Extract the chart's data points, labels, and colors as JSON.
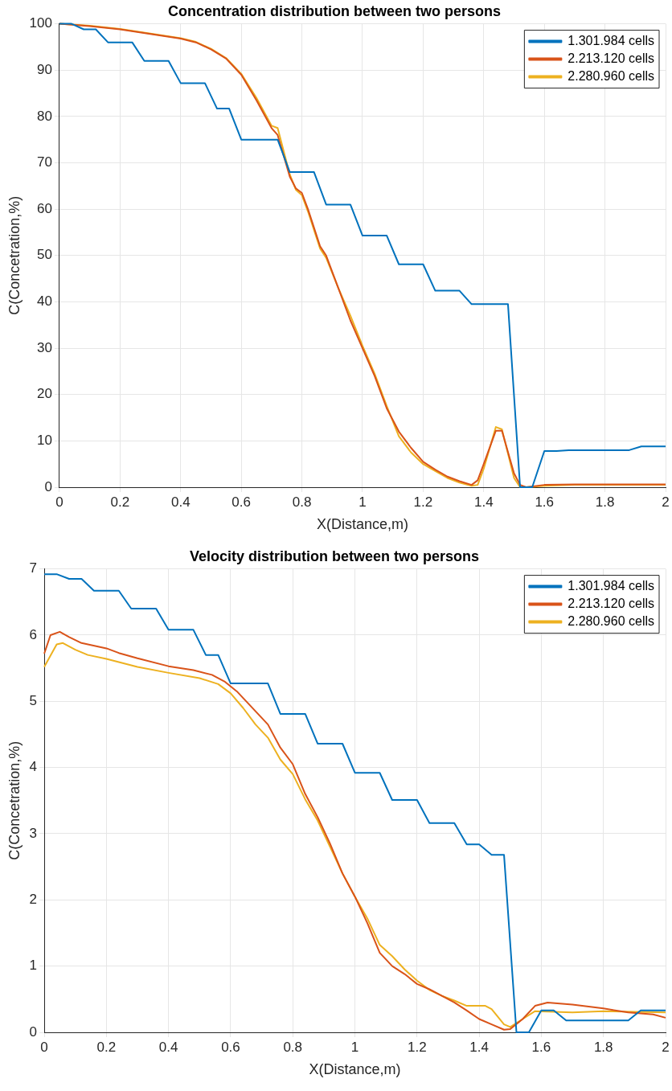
{
  "chart_data": [
    {
      "type": "line",
      "title": "Concentration distribution between two persons",
      "xlabel": "X(Distance,m)",
      "ylabel": "C(Concetration,%)",
      "xlim": [
        0,
        2
      ],
      "xticks": [
        0,
        0.2,
        0.4,
        0.6,
        0.8,
        1,
        1.2,
        1.4,
        1.6,
        1.8,
        2
      ],
      "ylim": [
        0,
        100
      ],
      "yticks": [
        0,
        10,
        20,
        30,
        40,
        50,
        60,
        70,
        80,
        90,
        100
      ],
      "grid": true,
      "legend": "top right",
      "marker": "none",
      "line_style": "solid",
      "series": [
        {
          "name": "1.301.984 cells",
          "color": "#0072bd",
          "x": [
            0,
            0.04,
            0.08,
            0.12,
            0.16,
            0.24,
            0.28,
            0.36,
            0.4,
            0.48,
            0.52,
            0.56,
            0.6,
            0.72,
            0.76,
            0.84,
            0.88,
            0.96,
            1.0,
            1.08,
            1.12,
            1.2,
            1.24,
            1.32,
            1.36,
            1.48,
            1.52,
            1.56,
            1.6,
            1.64,
            1.68,
            1.88,
            1.92,
            2
          ],
          "values": [
            100,
            100,
            98.8,
            98.8,
            96,
            96,
            92,
            92,
            87.2,
            87.2,
            81.7,
            81.7,
            75,
            75,
            68,
            68,
            61,
            61,
            54.3,
            54.3,
            48.1,
            48.1,
            42.4,
            42.4,
            39.5,
            39.5,
            0,
            0,
            7.8,
            7.8,
            8,
            8,
            8.8,
            8.8
          ]
        },
        {
          "name": "2.213.120 cells",
          "color": "#d95319",
          "x": [
            0,
            0.1,
            0.2,
            0.3,
            0.4,
            0.45,
            0.5,
            0.55,
            0.6,
            0.65,
            0.7,
            0.72,
            0.76,
            0.78,
            0.8,
            0.82,
            0.86,
            0.88,
            0.92,
            0.96,
            1.0,
            1.04,
            1.08,
            1.12,
            1.16,
            1.2,
            1.24,
            1.28,
            1.32,
            1.36,
            1.38,
            1.4,
            1.44,
            1.46,
            1.5,
            1.52,
            1.54,
            1.6,
            1.7,
            2
          ],
          "values": [
            100,
            99.5,
            98.8,
            97.8,
            96.8,
            96,
            94.5,
            92.5,
            89,
            83.5,
            77.5,
            76,
            67,
            64.5,
            63.5,
            60,
            52,
            50,
            43,
            36,
            30,
            24,
            17,
            12,
            8.5,
            5.5,
            3.8,
            2.3,
            1.3,
            0.5,
            1.5,
            5,
            12.2,
            12.2,
            3,
            0.5,
            0,
            0.5,
            0.6,
            0.6
          ]
        },
        {
          "name": "2.280.960 cells",
          "color": "#edb120",
          "x": [
            0,
            0.1,
            0.2,
            0.3,
            0.4,
            0.45,
            0.5,
            0.55,
            0.6,
            0.65,
            0.7,
            0.72,
            0.76,
            0.78,
            0.8,
            0.82,
            0.86,
            0.88,
            0.92,
            0.96,
            1.0,
            1.04,
            1.08,
            1.12,
            1.16,
            1.2,
            1.24,
            1.28,
            1.32,
            1.36,
            1.38,
            1.4,
            1.44,
            1.46,
            1.5,
            1.52,
            1.54,
            1.6,
            1.7,
            2
          ],
          "values": [
            100,
            99.6,
            98.9,
            97.9,
            96.9,
            96.1,
            94.6,
            92.6,
            89.2,
            84,
            78,
            77.5,
            67.5,
            64.2,
            63,
            59.5,
            51.5,
            49.5,
            43,
            37,
            30.5,
            24.5,
            17.5,
            11,
            7.5,
            5,
            3.5,
            2,
            1,
            0.3,
            0.5,
            4,
            13,
            12.5,
            2,
            0,
            0,
            0.3,
            0.5,
            0.5
          ]
        }
      ]
    },
    {
      "type": "line",
      "title": "Velocity distribution between two persons",
      "xlabel": "X(Distance,m)",
      "ylabel": "C(Concetration,%)",
      "xlim": [
        0,
        2
      ],
      "xticks": [
        0,
        0.2,
        0.4,
        0.6,
        0.8,
        1,
        1.2,
        1.4,
        1.6,
        1.8,
        2
      ],
      "ylim": [
        0,
        7
      ],
      "yticks": [
        0,
        1,
        2,
        3,
        4,
        5,
        6,
        7
      ],
      "grid": true,
      "legend": "top right",
      "marker": "none",
      "line_style": "solid",
      "series": [
        {
          "name": "1.301.984 cells",
          "color": "#0072bd",
          "x": [
            0,
            0.04,
            0.08,
            0.12,
            0.16,
            0.24,
            0.28,
            0.36,
            0.4,
            0.48,
            0.52,
            0.56,
            0.6,
            0.72,
            0.76,
            0.84,
            0.88,
            0.96,
            1.0,
            1.08,
            1.12,
            1.2,
            1.24,
            1.32,
            1.36,
            1.4,
            1.44,
            1.48,
            1.52,
            1.56,
            1.6,
            1.64,
            1.68,
            1.88,
            1.92,
            2
          ],
          "values": [
            6.92,
            6.92,
            6.85,
            6.85,
            6.67,
            6.67,
            6.4,
            6.4,
            6.08,
            6.08,
            5.7,
            5.7,
            5.27,
            5.27,
            4.81,
            4.81,
            4.36,
            4.36,
            3.92,
            3.92,
            3.51,
            3.51,
            3.16,
            3.16,
            2.84,
            2.84,
            2.68,
            2.68,
            0,
            0,
            0.33,
            0.33,
            0.18,
            0.18,
            0.33,
            0.33
          ]
        },
        {
          "name": "2.213.120 cells",
          "color": "#d95319",
          "x": [
            0,
            0.02,
            0.05,
            0.08,
            0.12,
            0.2,
            0.24,
            0.3,
            0.4,
            0.48,
            0.54,
            0.58,
            0.62,
            0.66,
            0.7,
            0.72,
            0.76,
            0.8,
            0.84,
            0.88,
            0.92,
            0.96,
            1.0,
            1.04,
            1.08,
            1.12,
            1.16,
            1.2,
            1.24,
            1.28,
            1.32,
            1.36,
            1.4,
            1.44,
            1.48,
            1.5,
            1.54,
            1.58,
            1.62,
            1.7,
            1.8,
            1.88,
            1.96,
            2
          ],
          "values": [
            5.72,
            6.0,
            6.05,
            5.97,
            5.88,
            5.8,
            5.73,
            5.65,
            5.53,
            5.47,
            5.4,
            5.3,
            5.15,
            4.95,
            4.75,
            4.65,
            4.3,
            4.05,
            3.6,
            3.25,
            2.85,
            2.4,
            2.05,
            1.65,
            1.2,
            1.0,
            0.88,
            0.73,
            0.65,
            0.55,
            0.45,
            0.33,
            0.2,
            0.12,
            0.04,
            0.05,
            0.2,
            0.4,
            0.45,
            0.42,
            0.36,
            0.3,
            0.27,
            0.22
          ]
        },
        {
          "name": "2.280.960 cells",
          "color": "#edb120",
          "x": [
            0,
            0.04,
            0.06,
            0.1,
            0.14,
            0.2,
            0.3,
            0.4,
            0.5,
            0.56,
            0.6,
            0.64,
            0.68,
            0.72,
            0.76,
            0.8,
            0.84,
            0.88,
            0.92,
            0.96,
            1.0,
            1.04,
            1.08,
            1.12,
            1.16,
            1.2,
            1.24,
            1.28,
            1.32,
            1.36,
            1.42,
            1.44,
            1.48,
            1.5,
            1.54,
            1.58,
            1.7,
            1.8,
            2
          ],
          "values": [
            5.52,
            5.86,
            5.88,
            5.78,
            5.7,
            5.64,
            5.52,
            5.43,
            5.35,
            5.26,
            5.12,
            4.9,
            4.65,
            4.45,
            4.12,
            3.9,
            3.52,
            3.2,
            2.8,
            2.4,
            2.05,
            1.72,
            1.32,
            1.15,
            0.95,
            0.78,
            0.64,
            0.55,
            0.48,
            0.4,
            0.4,
            0.35,
            0.12,
            0.08,
            0.2,
            0.32,
            0.3,
            0.32,
            0.3
          ]
        }
      ]
    }
  ]
}
